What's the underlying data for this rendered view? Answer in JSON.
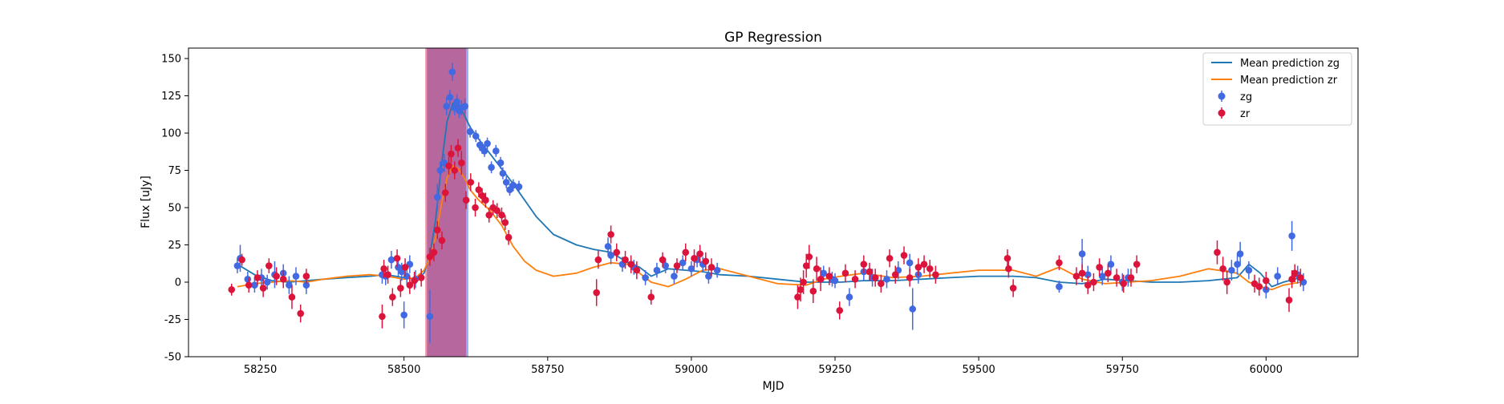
{
  "chart_data": {
    "type": "scatter",
    "title": "GP Regression",
    "xlabel": "MJD",
    "ylabel": "Flux [uJy]",
    "xlim": [
      58125,
      60160
    ],
    "ylim": [
      -50,
      157
    ],
    "xticks": [
      58250,
      58500,
      58750,
      59000,
      59250,
      59500,
      59750,
      60000
    ],
    "yticks": [
      -50,
      -25,
      0,
      25,
      50,
      75,
      100,
      125,
      150
    ],
    "grid": false,
    "legend_position": "top-right",
    "shaded_regions": [
      {
        "x0": 58540,
        "x1": 58612,
        "color": "#4169e1",
        "alpha": 0.55
      },
      {
        "x0": 58537,
        "x1": 58608,
        "color": "#dc143c",
        "alpha": 0.45
      }
    ],
    "series": [
      {
        "name": "Mean prediction zg",
        "kind": "line",
        "color": "#1f77b4",
        "x": [
          58210,
          58240,
          58270,
          58300,
          58330,
          58360,
          58400,
          58440,
          58470,
          58500,
          58520,
          58535,
          58545,
          58555,
          58565,
          58575,
          58585,
          58595,
          58605,
          58615,
          58630,
          58650,
          58670,
          58690,
          58710,
          58730,
          58760,
          58800,
          58830,
          58860,
          58890,
          58910,
          58930,
          58960,
          58990,
          59020,
          59050,
          59100,
          59150,
          59200,
          59230,
          59260,
          59300,
          59350,
          59400,
          59450,
          59500,
          59560,
          59600,
          59640,
          59680,
          59720,
          59760,
          59800,
          59850,
          59900,
          59950,
          59970,
          59990,
          60010,
          60030,
          60060
        ],
        "y": [
          12,
          5,
          1,
          0,
          1,
          2,
          3,
          4,
          5,
          3,
          2,
          6,
          18,
          42,
          78,
          108,
          120,
          118,
          112,
          104,
          96,
          86,
          76,
          66,
          55,
          44,
          32,
          25,
          22,
          20,
          13,
          10,
          4,
          9,
          8,
          7,
          5,
          4,
          2,
          0,
          0,
          0,
          1,
          1,
          2,
          3,
          4,
          4,
          3,
          0,
          -1,
          2,
          1,
          0,
          0,
          1,
          3,
          12,
          6,
          -3,
          0,
          3
        ]
      },
      {
        "name": "Mean prediction zr",
        "kind": "line",
        "color": "#ff7f0e",
        "x": [
          58210,
          58240,
          58270,
          58300,
          58330,
          58360,
          58400,
          58440,
          58470,
          58500,
          58520,
          58535,
          58545,
          58555,
          58565,
          58575,
          58585,
          58595,
          58605,
          58615,
          58630,
          58650,
          58670,
          58690,
          58710,
          58730,
          58760,
          58800,
          58830,
          58860,
          58890,
          58910,
          58930,
          58960,
          58990,
          59020,
          59050,
          59100,
          59150,
          59200,
          59230,
          59260,
          59300,
          59350,
          59400,
          59450,
          59500,
          59560,
          59600,
          59640,
          59680,
          59720,
          59760,
          59800,
          59850,
          59900,
          59950,
          59970,
          59990,
          60010,
          60030,
          60060
        ],
        "y": [
          -3,
          -1,
          0,
          1,
          0,
          2,
          4,
          5,
          4,
          2,
          3,
          8,
          16,
          30,
          52,
          70,
          78,
          76,
          70,
          62,
          55,
          48,
          38,
          24,
          14,
          8,
          4,
          6,
          10,
          13,
          12,
          6,
          0,
          -3,
          2,
          8,
          9,
          4,
          -1,
          -2,
          2,
          4,
          6,
          3,
          4,
          6,
          8,
          8,
          4,
          10,
          2,
          -1,
          0,
          1,
          4,
          9,
          6,
          0,
          -3,
          -5,
          -2,
          0
        ]
      },
      {
        "name": "zg",
        "kind": "errorbar",
        "color": "#4169e1",
        "x": [
          58210,
          58215,
          58228,
          58240,
          58252,
          58262,
          58275,
          58290,
          58300,
          58312,
          58330,
          58462,
          58468,
          58478,
          58490,
          58496,
          58500,
          58505,
          58510,
          58520,
          58545,
          58558,
          58563,
          58570,
          58574,
          58580,
          58584,
          58588,
          58592,
          58596,
          58600,
          58606,
          58615,
          58625,
          58632,
          58636,
          58640,
          58645,
          58652,
          58660,
          58668,
          58672,
          58678,
          58684,
          58690,
          58700,
          58855,
          58860,
          58880,
          58900,
          58920,
          58940,
          58955,
          58970,
          58985,
          59000,
          59010,
          59020,
          59030,
          59045,
          59230,
          59245,
          59250,
          59275,
          59300,
          59315,
          59340,
          59360,
          59380,
          59385,
          59395,
          59640,
          59680,
          59690,
          59715,
          59730,
          59750,
          59760,
          59940,
          59950,
          59955,
          59970,
          60000,
          60020,
          60045,
          60055,
          60065
        ],
        "y": [
          11,
          16,
          2,
          -2,
          3,
          0,
          5,
          6,
          -2,
          4,
          -2,
          5,
          4,
          15,
          10,
          7,
          -22,
          4,
          12,
          2,
          -23,
          57,
          75,
          80,
          118,
          124,
          141,
          117,
          121,
          115,
          117,
          118,
          101,
          98,
          92,
          90,
          88,
          93,
          77,
          88,
          80,
          73,
          67,
          62,
          65,
          64,
          24,
          18,
          12,
          10,
          3,
          8,
          11,
          4,
          13,
          9,
          15,
          12,
          4,
          8,
          6,
          2,
          1,
          -10,
          7,
          3,
          2,
          8,
          13,
          -18,
          5,
          -3,
          19,
          5,
          4,
          12,
          0,
          3,
          8,
          12,
          19,
          8,
          -5,
          4,
          31,
          5,
          0
        ],
        "yerr": [
          5,
          9,
          5,
          5,
          6,
          5,
          9,
          6,
          6,
          6,
          6,
          6,
          6,
          6,
          6,
          6,
          9,
          6,
          6,
          6,
          18,
          9,
          6,
          6,
          6,
          5,
          6,
          5,
          5,
          5,
          5,
          5,
          4,
          4,
          4,
          4,
          4,
          4,
          4,
          4,
          4,
          4,
          4,
          4,
          4,
          4,
          6,
          6,
          5,
          5,
          5,
          5,
          5,
          5,
          5,
          5,
          5,
          5,
          5,
          5,
          5,
          5,
          5,
          6,
          6,
          6,
          6,
          6,
          6,
          14,
          6,
          4,
          10,
          6,
          6,
          6,
          6,
          6,
          7,
          7,
          8,
          6,
          6,
          6,
          10,
          6,
          6
        ]
      },
      {
        "name": "zr",
        "kind": "errorbar",
        "color": "#dc143c",
        "x": [
          58200,
          58218,
          58230,
          58245,
          58255,
          58265,
          58278,
          58290,
          58305,
          58320,
          58330,
          58462,
          58465,
          58472,
          58480,
          58488,
          58494,
          58502,
          58510,
          58518,
          58530,
          58545,
          58552,
          58558,
          58566,
          58572,
          58578,
          58582,
          58588,
          58594,
          58600,
          58608,
          58616,
          58624,
          58630,
          58636,
          58642,
          58648,
          58655,
          58662,
          58670,
          58676,
          58682,
          58835,
          58838,
          58860,
          58870,
          58885,
          58895,
          58905,
          58930,
          58950,
          58975,
          58990,
          59005,
          59015,
          59025,
          59035,
          59185,
          59190,
          59195,
          59200,
          59205,
          59212,
          59218,
          59225,
          59240,
          59258,
          59268,
          59285,
          59300,
          59310,
          59320,
          59330,
          59345,
          59355,
          59370,
          59380,
          59395,
          59405,
          59415,
          59425,
          59550,
          59552,
          59560,
          59640,
          59670,
          59680,
          59690,
          59700,
          59710,
          59725,
          59740,
          59752,
          59765,
          59775,
          59915,
          59925,
          59932,
          59980,
          59988,
          60000,
          60040,
          60045,
          60050,
          60060
        ],
        "y": [
          -5,
          15,
          -2,
          3,
          -4,
          11,
          4,
          2,
          -10,
          -21,
          4,
          -23,
          9,
          5,
          -10,
          16,
          -4,
          10,
          -2,
          1,
          3,
          17,
          20,
          35,
          28,
          60,
          78,
          86,
          75,
          90,
          80,
          55,
          67,
          50,
          62,
          58,
          55,
          45,
          50,
          48,
          45,
          40,
          30,
          -7,
          15,
          32,
          20,
          15,
          12,
          8,
          -10,
          15,
          11,
          20,
          16,
          19,
          14,
          10,
          -10,
          -5,
          0,
          11,
          17,
          -6,
          9,
          2,
          4,
          -19,
          6,
          2,
          12,
          7,
          3,
          -1,
          16,
          5,
          18,
          3,
          10,
          12,
          9,
          5,
          16,
          9,
          -4,
          13,
          4,
          6,
          -2,
          0,
          10,
          6,
          3,
          -1,
          3,
          12,
          20,
          9,
          0,
          -1,
          -3,
          1,
          -12,
          2,
          6,
          3
        ],
        "yerr": [
          4,
          4,
          5,
          5,
          6,
          5,
          6,
          6,
          8,
          6,
          5,
          8,
          6,
          6,
          6,
          6,
          6,
          6,
          6,
          6,
          6,
          6,
          6,
          6,
          6,
          6,
          6,
          6,
          6,
          6,
          8,
          6,
          6,
          6,
          5,
          5,
          5,
          5,
          5,
          5,
          5,
          5,
          5,
          9,
          6,
          6,
          6,
          6,
          6,
          6,
          5,
          5,
          5,
          6,
          6,
          6,
          6,
          6,
          8,
          8,
          8,
          8,
          8,
          8,
          8,
          8,
          6,
          6,
          6,
          6,
          6,
          6,
          6,
          6,
          6,
          6,
          6,
          6,
          6,
          6,
          6,
          6,
          6,
          6,
          6,
          5,
          6,
          6,
          6,
          6,
          6,
          6,
          6,
          6,
          6,
          6,
          8,
          8,
          8,
          6,
          6,
          6,
          8,
          6,
          6,
          6
        ]
      }
    ]
  }
}
